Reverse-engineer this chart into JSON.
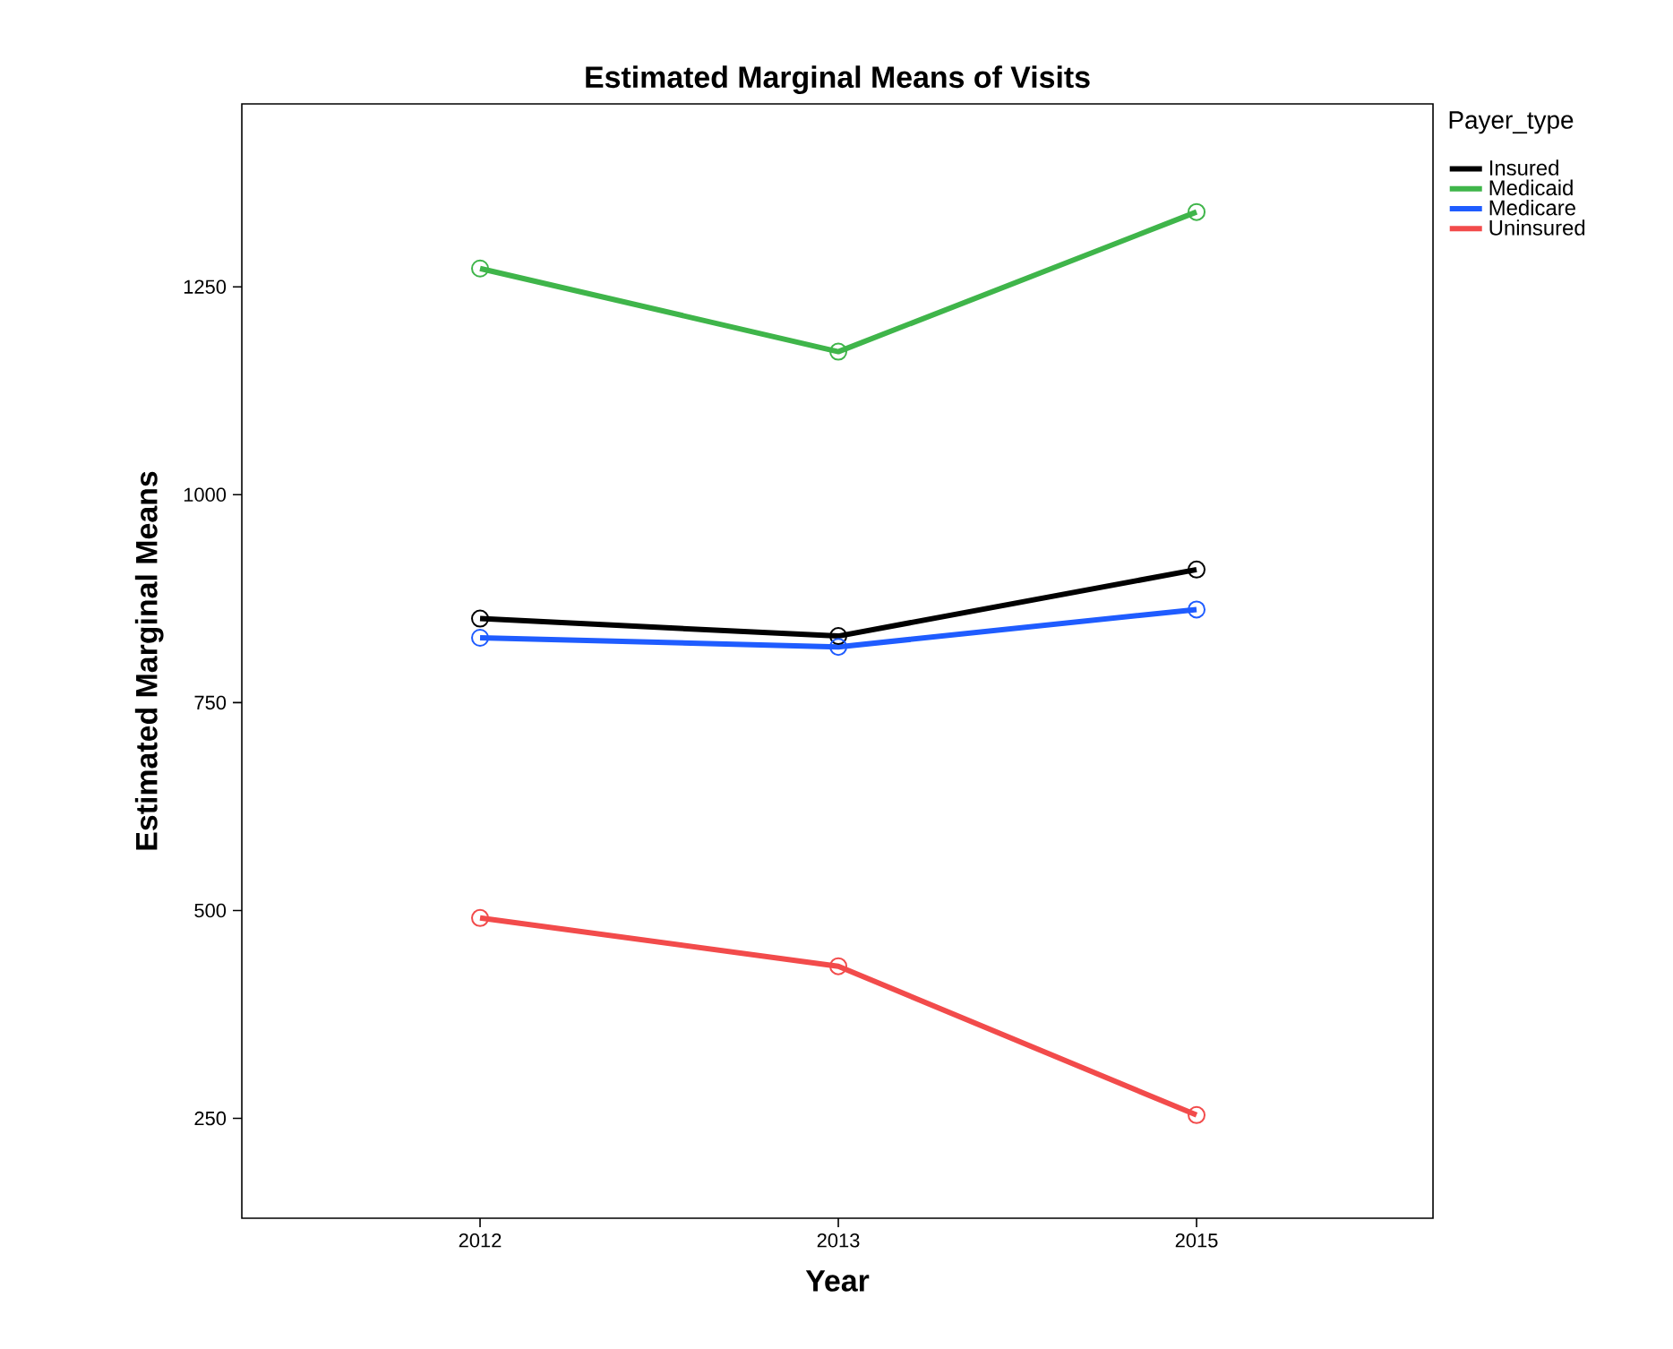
{
  "chart_data": {
    "type": "line",
    "title": "Estimated Marginal Means of Visits",
    "xlabel": "Year",
    "ylabel": "Estimated Marginal Means",
    "legend_title": "Payer_type",
    "categories": [
      "2012",
      "2013",
      "2015"
    ],
    "series": [
      {
        "name": "Insured",
        "color": "#000000",
        "values": [
          851,
          830,
          910
        ]
      },
      {
        "name": "Medicaid",
        "color": "#3fb54a",
        "values": [
          1272,
          1172,
          1340
        ]
      },
      {
        "name": "Medicare",
        "color": "#1f5cff",
        "values": [
          828,
          817,
          862
        ]
      },
      {
        "name": "Uninsured",
        "color": "#f24b4b",
        "values": [
          491,
          433,
          254
        ]
      }
    ],
    "ylim": [
      130,
      1470
    ],
    "yticks": [
      250,
      500,
      750,
      1000,
      1250
    ],
    "grid": false,
    "legend": "top right",
    "marker": "circle",
    "line_style": "solid"
  }
}
